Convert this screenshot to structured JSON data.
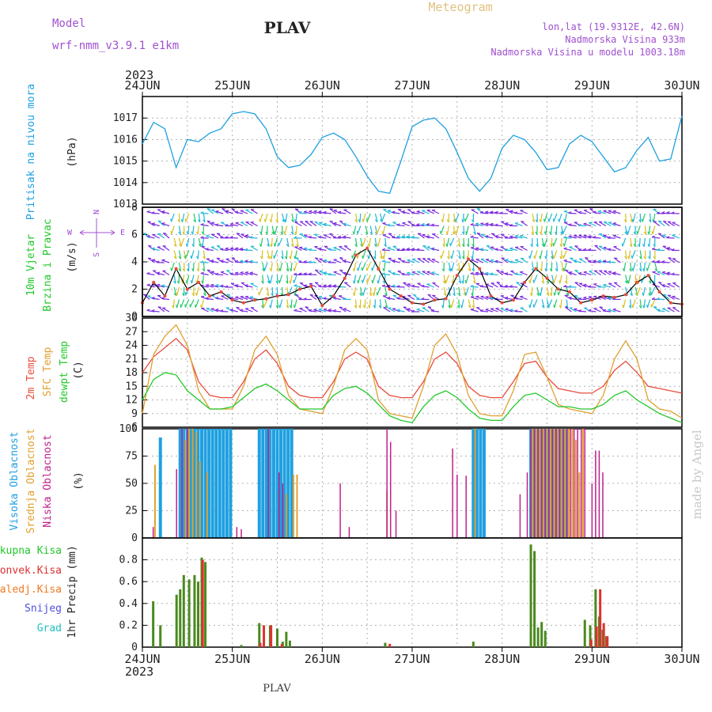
{
  "header": {
    "model_label": "Model",
    "model_name": "wrf-nmm_v3.9.1 e1km",
    "station": "PLAV",
    "product": "Meteogram",
    "coords": "lon,lat (19.9312E, 42.6N)",
    "elevation": "Nadmorska Visina 933m",
    "model_elevation": "Nadmorska Visina u modelu 1003.18m",
    "year_top": "2023",
    "year_bottom": "2023",
    "footer_station": "PLAV",
    "credit": "made by Angel"
  },
  "colors": {
    "pressure": "#1ea0e0",
    "temp2m": "#e84c3d",
    "sfc": "#e0a030",
    "dewpt": "#22c82a",
    "high_cloud": "#1ea0e0",
    "mid_cloud": "#e0a030",
    "low_cloud": "#c0208a",
    "total_rain": "#4a8a1e",
    "conv_rain": "#e03030",
    "frz_rain": "#f07820",
    "snow": "#5050e0",
    "hail": "#20c0c0",
    "wind_purple": "#7a2ae0",
    "wind_cyan": "#20b8d8",
    "wind_green": "#22c86a",
    "wind_yellow": "#d8c020",
    "speed_line": "#000000",
    "compass": "#a050d0",
    "credit": "#c8c8c8"
  },
  "chart_data": [
    {
      "type": "line",
      "id": "pressure",
      "ylabel_name": "Pritisak na nivou mora",
      "ylabel_unit": "(hPa)",
      "ylim": [
        1013,
        1018
      ],
      "yticks": [
        1013,
        1014,
        1015,
        1016,
        1017
      ],
      "x_days": [
        "24JUN",
        "25JUN",
        "26JUN",
        "27JUN",
        "28JUN",
        "29JUN",
        "30JUN"
      ],
      "x": [
        0,
        0.125,
        0.25,
        0.375,
        0.5,
        0.625,
        0.75,
        0.875,
        1,
        1.125,
        1.25,
        1.375,
        1.5,
        1.625,
        1.75,
        1.875,
        2,
        2.125,
        2.25,
        2.375,
        2.5,
        2.625,
        2.75,
        2.875,
        3,
        3.125,
        3.25,
        3.375,
        3.5,
        3.625,
        3.75,
        3.875,
        4,
        4.125,
        4.25,
        4.375,
        4.5,
        4.625,
        4.75,
        4.875,
        5,
        5.125,
        5.25,
        5.375,
        5.5,
        5.625,
        5.75,
        5.875,
        6
      ],
      "values": [
        1015.8,
        1016.8,
        1016.5,
        1014.7,
        1016.0,
        1015.9,
        1016.3,
        1016.5,
        1017.2,
        1017.3,
        1017.2,
        1016.5,
        1015.2,
        1014.7,
        1014.8,
        1015.3,
        1016.1,
        1016.3,
        1016.0,
        1015.2,
        1014.3,
        1013.6,
        1013.5,
        1015.0,
        1016.6,
        1016.9,
        1017.0,
        1016.5,
        1015.4,
        1014.2,
        1013.6,
        1014.2,
        1015.6,
        1016.2,
        1016.0,
        1015.4,
        1014.6,
        1014.7,
        1015.8,
        1016.2,
        1015.9,
        1015.2,
        1014.5,
        1014.7,
        1015.5,
        1016.1,
        1015.0,
        1015.1,
        1017.1
      ],
      "grid": true
    },
    {
      "type": "line",
      "id": "wind",
      "ylabel_name_1": "10m Vjetar",
      "ylabel_name_2": "Brzina i Pravac",
      "ylabel_unit": "(m/s)",
      "compass": {
        "n": "N",
        "s": "S",
        "w": "W",
        "e": "E"
      },
      "ylim": [
        0,
        8
      ],
      "yticks": [
        0,
        2,
        4,
        6,
        8
      ],
      "x": [
        0,
        0.125,
        0.25,
        0.375,
        0.5,
        0.625,
        0.75,
        0.875,
        1,
        1.125,
        1.25,
        1.375,
        1.5,
        1.625,
        1.75,
        1.875,
        2,
        2.125,
        2.25,
        2.375,
        2.5,
        2.625,
        2.75,
        2.875,
        3,
        3.125,
        3.25,
        3.375,
        3.5,
        3.625,
        3.75,
        3.875,
        4,
        4.125,
        4.25,
        4.375,
        4.5,
        4.625,
        4.75,
        4.875,
        5,
        5.125,
        5.25,
        5.375,
        5.5,
        5.625,
        5.75,
        5.875,
        6
      ],
      "values": [
        1.0,
        2.5,
        1.5,
        3.5,
        2.0,
        2.5,
        1.5,
        1.8,
        1.2,
        1.0,
        1.2,
        1.3,
        1.5,
        1.6,
        2.0,
        2.2,
        0.8,
        1.5,
        2.8,
        4.5,
        5.0,
        3.5,
        2.0,
        1.5,
        1.0,
        0.9,
        1.2,
        1.3,
        3.0,
        4.2,
        3.5,
        1.5,
        1.0,
        1.2,
        2.5,
        3.5,
        2.8,
        2.0,
        1.8,
        1.0,
        1.2,
        1.5,
        1.4,
        1.6,
        2.5,
        3.0,
        1.8,
        1.0,
        0.9
      ],
      "grid": true
    },
    {
      "type": "line",
      "id": "temperature",
      "ylabel_name_1": "2m Temp",
      "ylabel_name_2": "SFC Temp",
      "ylabel_name_3": "dewpt Temp",
      "ylabel_unit": "(C)",
      "ylim": [
        6,
        30
      ],
      "yticks": [
        6,
        9,
        12,
        15,
        18,
        21,
        24,
        27,
        30
      ],
      "x": [
        0,
        0.125,
        0.25,
        0.375,
        0.5,
        0.625,
        0.75,
        0.875,
        1,
        1.125,
        1.25,
        1.375,
        1.5,
        1.625,
        1.75,
        1.875,
        2,
        2.125,
        2.25,
        2.375,
        2.5,
        2.625,
        2.75,
        2.875,
        3,
        3.125,
        3.25,
        3.375,
        3.5,
        3.625,
        3.75,
        3.875,
        4,
        4.125,
        4.25,
        4.375,
        4.5,
        4.625,
        4.75,
        4.875,
        5,
        5.125,
        5.25,
        5.375,
        5.5,
        5.625,
        5.75,
        5.875,
        6
      ],
      "series": [
        {
          "name": "2m Temp",
          "values": [
            18,
            21.5,
            23.5,
            25.5,
            23,
            16,
            13,
            12.5,
            12.5,
            16,
            21,
            23,
            20,
            15,
            13,
            12.5,
            12.5,
            16,
            21,
            22.5,
            21,
            15,
            13,
            12.5,
            12.5,
            16,
            21,
            22.5,
            20,
            15,
            13,
            12.5,
            12.5,
            16,
            20,
            20.5,
            17,
            14.5,
            14,
            13.5,
            13.5,
            15,
            18.5,
            20.5,
            18,
            15,
            14.5,
            14,
            13.5
          ]
        },
        {
          "name": "SFC Temp",
          "values": [
            9,
            22,
            26,
            28.5,
            24,
            14,
            10,
            10,
            10,
            15,
            23,
            26,
            22,
            13,
            10,
            9.5,
            9,
            15,
            23,
            25.5,
            23,
            12,
            9,
            8.5,
            8,
            15,
            24,
            26.5,
            22,
            13,
            9,
            8.5,
            8.5,
            14,
            22,
            22.5,
            17,
            11,
            10,
            9.5,
            9,
            13,
            21,
            25,
            21,
            12,
            10,
            9.5,
            8
          ]
        },
        {
          "name": "dewpt Temp",
          "values": [
            12,
            16.5,
            18,
            17.5,
            14,
            12,
            10,
            10,
            10.5,
            12.5,
            14.5,
            15.5,
            14,
            12,
            10,
            10,
            10,
            13,
            14.5,
            15,
            13.5,
            11,
            8.5,
            7.5,
            7,
            10.5,
            13,
            14,
            12.5,
            10,
            8,
            7.5,
            7.5,
            10.5,
            13,
            13.5,
            12,
            10.5,
            10.5,
            10,
            10,
            11,
            13,
            14,
            12,
            10.5,
            9,
            8,
            7
          ]
        }
      ],
      "grid": true
    },
    {
      "type": "bar",
      "id": "cloud",
      "ylabel_name_1": "Visoka Oblacnost",
      "ylabel_name_2": "Srednja Oblacnost",
      "ylabel_name_3": "Niska Oblacnost",
      "ylabel_unit": "(%)",
      "ylim": [
        0,
        100
      ],
      "yticks": [
        0,
        25,
        50,
        75,
        100
      ],
      "series": [
        {
          "name": "Visoka Oblacnost",
          "x": [
            0.2,
            0.42,
            0.46,
            0.5,
            0.54,
            0.58,
            0.62,
            0.66,
            0.7,
            0.74,
            0.78,
            0.82,
            0.86,
            0.9,
            0.94,
            0.98,
            1.3,
            1.34,
            1.38,
            1.42,
            1.46,
            1.5,
            1.54,
            1.58,
            1.62,
            1.66,
            3.68,
            3.72,
            3.76,
            3.8,
            4.32,
            4.36,
            4.4,
            4.44,
            4.48,
            4.52,
            4.56,
            4.6,
            4.64,
            4.68,
            4.72
          ],
          "values": [
            92,
            100,
            100,
            100,
            100,
            100,
            100,
            100,
            100,
            100,
            100,
            100,
            100,
            100,
            100,
            100,
            100,
            100,
            100,
            100,
            100,
            100,
            100,
            100,
            100,
            100,
            100,
            100,
            100,
            100,
            100,
            100,
            100,
            100,
            100,
            100,
            100,
            100,
            100,
            100,
            100
          ]
        },
        {
          "name": "Srednja Oblacnost",
          "x": [
            0.14,
            0.48,
            0.52,
            0.56,
            0.6,
            0.64,
            0.72,
            1.6,
            1.68,
            1.72,
            2.72,
            3.7,
            4.34,
            4.38,
            4.42,
            4.46,
            4.5,
            4.54,
            4.58,
            4.62,
            4.66,
            4.7,
            4.74,
            4.78,
            4.82,
            4.86,
            4.9
          ],
          "values": [
            67,
            90,
            100,
            100,
            97,
            70,
            60,
            40,
            58,
            58,
            43,
            100,
            100,
            100,
            100,
            100,
            100,
            100,
            100,
            100,
            100,
            100,
            100,
            100,
            90,
            60,
            100
          ]
        },
        {
          "name": "Niska Oblacnost",
          "x": [
            0.12,
            0.38,
            0.44,
            0.5,
            1.05,
            1.1,
            1.4,
            1.52,
            1.56,
            2.2,
            2.3,
            2.72,
            2.76,
            2.82,
            3.45,
            3.5,
            3.6,
            4.2,
            4.28,
            4.32,
            4.36,
            4.4,
            4.44,
            4.48,
            4.52,
            4.56,
            4.6,
            4.64,
            4.68,
            4.72,
            4.76,
            4.8,
            4.84,
            4.88,
            4.92,
            5.0,
            5.04,
            5.08,
            5.12
          ],
          "values": [
            10,
            63,
            100,
            100,
            10,
            8,
            100,
            60,
            50,
            50,
            10,
            100,
            88,
            25,
            82,
            58,
            57,
            40,
            60,
            100,
            100,
            100,
            100,
            100,
            100,
            100,
            100,
            100,
            100,
            100,
            100,
            100,
            100,
            100,
            100,
            50,
            80,
            80,
            60
          ]
        }
      ],
      "grid": true
    },
    {
      "type": "bar",
      "id": "precip",
      "ylabel_name": "1hr Precip (mm)",
      "legend": [
        "Ukupna Kisa",
        "Konvek.Kisa",
        "Zaledj.Kisa",
        "Snijeg",
        "Grad"
      ],
      "ylim": [
        0,
        1.0
      ],
      "yticks": [
        0,
        0.2,
        0.4,
        0.6,
        0.8
      ],
      "series": [
        {
          "name": "Ukupna Kisa",
          "x": [
            0.12,
            0.2,
            0.38,
            0.42,
            0.46,
            0.52,
            0.58,
            0.62,
            0.66,
            0.7,
            1.1,
            1.3,
            1.42,
            1.5,
            1.56,
            1.6,
            1.64,
            2.7,
            3.68,
            4.32,
            4.36,
            4.4,
            4.44,
            4.48,
            4.92,
            4.98,
            5.04,
            5.08,
            5.12,
            5.16
          ],
          "values": [
            0.42,
            0.2,
            0.48,
            0.53,
            0.66,
            0.62,
            0.66,
            0.6,
            0.82,
            0.78,
            0.02,
            0.22,
            0.2,
            0.17,
            0.05,
            0.14,
            0.06,
            0.04,
            0.05,
            0.94,
            0.88,
            0.18,
            0.23,
            0.15,
            0.25,
            0.2,
            0.53,
            0.28,
            0.16,
            0.1
          ]
        },
        {
          "name": "Konvek.Kisa",
          "x": [
            0.64,
            1.28,
            1.32,
            1.4,
            1.52,
            2.72,
            4.96,
            5.02,
            5.06,
            5.1,
            5.14
          ],
          "values": [
            0.8,
            0.04,
            0.2,
            0.2,
            0.03,
            0.03,
            0.07,
            0.19,
            0.53,
            0.22,
            0.1
          ]
        }
      ],
      "grid": true
    }
  ]
}
